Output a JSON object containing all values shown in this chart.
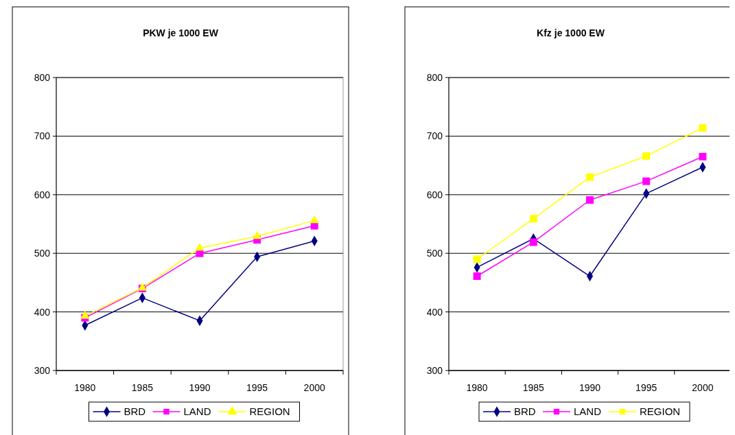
{
  "chart_data": [
    {
      "type": "line",
      "title": "PKW je 1000 EW",
      "categories": [
        "1980",
        "1985",
        "1990",
        "1995",
        "2000"
      ],
      "series": [
        {
          "name": "BRD",
          "color": "#000080",
          "marker": "diamond",
          "values": [
            377,
            424,
            385,
            494,
            521
          ]
        },
        {
          "name": "LAND",
          "color": "#ff00ff",
          "marker": "square",
          "values": [
            390,
            440,
            500,
            523,
            547
          ]
        },
        {
          "name": "REGION",
          "color": "#ffff00",
          "marker": "triangle",
          "values": [
            393,
            441,
            509,
            529,
            556
          ]
        }
      ],
      "ylim": [
        300,
        800
      ],
      "yticks": [
        300,
        400,
        500,
        600,
        700,
        800
      ],
      "grid": "y",
      "legend": "bottom"
    },
    {
      "type": "line",
      "title": "Kfz je 1000 EW",
      "categories": [
        "1980",
        "1985",
        "1990",
        "1995",
        "2000"
      ],
      "series": [
        {
          "name": "BRD",
          "color": "#000080",
          "marker": "diamond",
          "values": [
            476,
            525,
            461,
            602,
            647
          ]
        },
        {
          "name": "LAND",
          "color": "#ff00ff",
          "marker": "square",
          "values": [
            461,
            519,
            591,
            623,
            665
          ]
        },
        {
          "name": "REGION",
          "color": "#ffff00",
          "marker": "square",
          "values": [
            490,
            559,
            630,
            666,
            714
          ]
        }
      ],
      "ylim": [
        300,
        800
      ],
      "yticks": [
        300,
        400,
        500,
        600,
        700,
        800
      ],
      "grid": "y",
      "legend": "bottom"
    }
  ]
}
